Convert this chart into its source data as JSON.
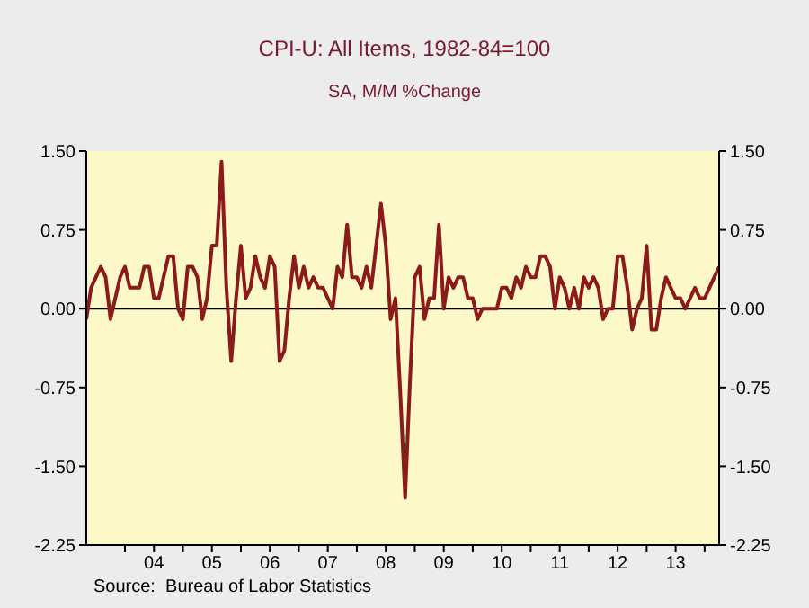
{
  "chart_data": {
    "type": "line",
    "title": "CPI-U: All Items, 1982-84=100",
    "subtitle": "SA, M/M %Change",
    "annotations": [
      "Source:  Bureau of Labor Statistics"
    ],
    "x": [
      "2003-05",
      "2003-06",
      "2003-07",
      "2003-08",
      "2003-09",
      "2003-10",
      "2003-11",
      "2003-12",
      "2004-01",
      "2004-02",
      "2004-03",
      "2004-04",
      "2004-05",
      "2004-06",
      "2004-07",
      "2004-08",
      "2004-09",
      "2004-10",
      "2004-11",
      "2004-12",
      "2005-01",
      "2005-02",
      "2005-03",
      "2005-04",
      "2005-05",
      "2005-06",
      "2005-07",
      "2005-08",
      "2005-09",
      "2005-10",
      "2005-11",
      "2005-12",
      "2006-01",
      "2006-02",
      "2006-03",
      "2006-04",
      "2006-05",
      "2006-06",
      "2006-07",
      "2006-08",
      "2006-09",
      "2006-10",
      "2006-11",
      "2006-12",
      "2007-01",
      "2007-02",
      "2007-03",
      "2007-04",
      "2007-05",
      "2007-06",
      "2007-07",
      "2007-08",
      "2007-09",
      "2007-10",
      "2007-11",
      "2007-12",
      "2008-01",
      "2008-02",
      "2008-03",
      "2008-04",
      "2008-05",
      "2008-06",
      "2008-07",
      "2008-08",
      "2008-09",
      "2008-10",
      "2008-11",
      "2008-12",
      "2009-01",
      "2009-02",
      "2009-03",
      "2009-04",
      "2009-05",
      "2009-06",
      "2009-07",
      "2009-08",
      "2009-09",
      "2009-10",
      "2009-11",
      "2009-12",
      "2010-01",
      "2010-02",
      "2010-03",
      "2010-04",
      "2010-05",
      "2010-06",
      "2010-07",
      "2010-08",
      "2010-09",
      "2010-10",
      "2010-11",
      "2010-12",
      "2011-01",
      "2011-02",
      "2011-03",
      "2011-04",
      "2011-05",
      "2011-06",
      "2011-07",
      "2011-08",
      "2011-09",
      "2011-10",
      "2011-11",
      "2011-12",
      "2012-01",
      "2012-02",
      "2012-03",
      "2012-04",
      "2012-05",
      "2012-06",
      "2012-07",
      "2012-08",
      "2012-09",
      "2012-10",
      "2012-11",
      "2012-12",
      "2013-01",
      "2013-02",
      "2013-03",
      "2013-04",
      "2013-05",
      "2013-06",
      "2013-07",
      "2013-08",
      "2013-09",
      "2013-10",
      "2013-11",
      "2013-12",
      "2014-01",
      "2014-02",
      "2014-03",
      "2014-04"
    ],
    "series": [
      {
        "color": "#8b1a1a",
        "values": [
          -0.1,
          0.2,
          0.3,
          0.4,
          0.3,
          -0.1,
          0.1,
          0.3,
          0.4,
          0.2,
          0.2,
          0.2,
          0.4,
          0.4,
          0.1,
          0.1,
          0.3,
          0.5,
          0.5,
          0.0,
          -0.1,
          0.4,
          0.4,
          0.3,
          -0.1,
          0.1,
          0.6,
          0.6,
          1.4,
          0.2,
          -0.5,
          0.1,
          0.6,
          0.1,
          0.2,
          0.5,
          0.3,
          0.2,
          0.5,
          0.4,
          -0.5,
          -0.4,
          0.1,
          0.5,
          0.2,
          0.4,
          0.2,
          0.3,
          0.2,
          0.2,
          0.1,
          0.0,
          0.4,
          0.3,
          0.8,
          0.3,
          0.3,
          0.2,
          0.4,
          0.2,
          0.6,
          1.0,
          0.6,
          -0.1,
          0.1,
          -0.8,
          -1.8,
          -0.7,
          0.3,
          0.4,
          -0.1,
          0.1,
          0.1,
          0.8,
          0.0,
          0.3,
          0.2,
          0.3,
          0.3,
          0.1,
          0.1,
          -0.1,
          0.0,
          0.0,
          0.0,
          0.0,
          0.2,
          0.2,
          0.1,
          0.3,
          0.2,
          0.4,
          0.3,
          0.3,
          0.5,
          0.5,
          0.4,
          0.0,
          0.3,
          0.2,
          0.0,
          0.2,
          0.0,
          0.3,
          0.2,
          0.3,
          0.2,
          -0.1,
          0.0,
          0.0,
          0.5,
          0.5,
          0.2,
          -0.2,
          0.0,
          0.1,
          0.6,
          -0.2,
          -0.2,
          0.1,
          0.3,
          0.2,
          0.1,
          0.1,
          0.0,
          0.1,
          0.2,
          0.1,
          0.1,
          0.2,
          0.3,
          0.4
        ]
      }
    ],
    "xlim": [
      "2003-05",
      "2014-04"
    ],
    "xticks": [
      {
        "value": "2004-01",
        "label": null
      },
      {
        "value": "2004-07",
        "label": "04"
      },
      {
        "value": "2005-01",
        "label": null
      },
      {
        "value": "2005-07",
        "label": "05"
      },
      {
        "value": "2006-01",
        "label": null
      },
      {
        "value": "2006-07",
        "label": "06"
      },
      {
        "value": "2007-01",
        "label": null
      },
      {
        "value": "2007-07",
        "label": "07"
      },
      {
        "value": "2008-01",
        "label": null
      },
      {
        "value": "2008-07",
        "label": "08"
      },
      {
        "value": "2009-01",
        "label": null
      },
      {
        "value": "2009-07",
        "label": "09"
      },
      {
        "value": "2010-01",
        "label": null
      },
      {
        "value": "2010-07",
        "label": "10"
      },
      {
        "value": "2011-01",
        "label": null
      },
      {
        "value": "2011-07",
        "label": "11"
      },
      {
        "value": "2012-01",
        "label": null
      },
      {
        "value": "2012-07",
        "label": "12"
      },
      {
        "value": "2013-01",
        "label": null
      },
      {
        "value": "2013-07",
        "label": "13"
      },
      {
        "value": "2014-01",
        "label": null
      }
    ],
    "ylim": [
      -2.25,
      1.5
    ],
    "yticks": [
      {
        "value": -2.25,
        "label": "-2.25"
      },
      {
        "value": -1.5,
        "label": "-1.50"
      },
      {
        "value": -0.75,
        "label": "-0.75"
      },
      {
        "value": 0,
        "label": "0.00"
      },
      {
        "value": 0.75,
        "label": "0.75"
      },
      {
        "value": 1.5,
        "label": "1.50"
      }
    ],
    "y2lim": [
      -2.25,
      1.5
    ],
    "y2ticks": [
      {
        "value": -2.25,
        "label": "-2.25"
      },
      {
        "value": -1.5,
        "label": "-1.50"
      },
      {
        "value": -0.75,
        "label": "-0.75"
      },
      {
        "value": 0,
        "label": "0.00"
      },
      {
        "value": 0.75,
        "label": "0.75"
      },
      {
        "value": 1.5,
        "label": "1.50"
      }
    ],
    "ref_lines": [
      {
        "axis": "y",
        "value": 0,
        "color": "#000000"
      }
    ],
    "grid": false,
    "legend": false,
    "marker": "none",
    "line_style": "solid"
  }
}
